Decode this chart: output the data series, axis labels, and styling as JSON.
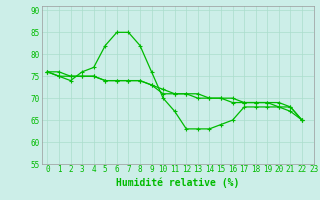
{
  "xlabel": "Humidité relative (%)",
  "bg_color": "#cceee8",
  "grid_color": "#aaddcc",
  "line_color": "#00bb00",
  "xlim": [
    -0.5,
    23
  ],
  "ylim": [
    55,
    91
  ],
  "yticks": [
    55,
    60,
    65,
    70,
    75,
    80,
    85,
    90
  ],
  "xticks": [
    0,
    1,
    2,
    3,
    4,
    5,
    6,
    7,
    8,
    9,
    10,
    11,
    12,
    13,
    14,
    15,
    16,
    17,
    18,
    19,
    20,
    21,
    22,
    23
  ],
  "line1_y": [
    76,
    75,
    74,
    76,
    77,
    82,
    85,
    85,
    82,
    76,
    70,
    67,
    63,
    63,
    63,
    64,
    65,
    68,
    68,
    68,
    68,
    67,
    65
  ],
  "line2_y": [
    76,
    75,
    75,
    75,
    75,
    74,
    74,
    74,
    74,
    73,
    71,
    71,
    71,
    70,
    70,
    70,
    70,
    69,
    69,
    69,
    69,
    68,
    65
  ],
  "line3_y": [
    76,
    76,
    75,
    75,
    75,
    74,
    74,
    74,
    74,
    73,
    72,
    71,
    71,
    71,
    70,
    70,
    69,
    69,
    69,
    69,
    68,
    68,
    65
  ],
  "xlabel_fontsize": 7,
  "tick_fontsize": 5.5
}
